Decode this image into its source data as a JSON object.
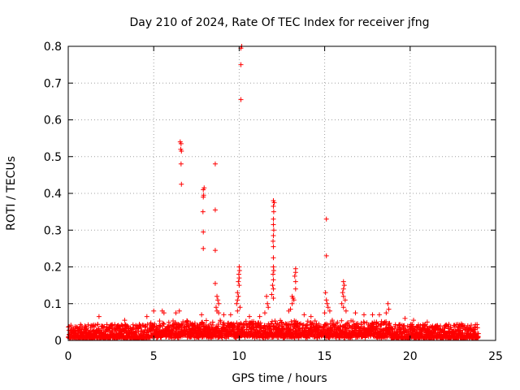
{
  "chart_data": {
    "type": "scatter",
    "title": "Day 210 of 2024, Rate Of TEC Index for receiver jfng",
    "xlabel": "GPS time / hours",
    "ylabel": "ROTI / TECUs",
    "xlim": [
      0,
      25
    ],
    "ylim": [
      0,
      0.8
    ],
    "x_ticks": [
      "0",
      "5",
      "10",
      "15",
      "20",
      "25"
    ],
    "y_ticks": [
      "0",
      "0.1",
      "0.2",
      "0.3",
      "0.4",
      "0.5",
      "0.6",
      "0.7",
      "0.8"
    ],
    "grid": true,
    "marker": "+",
    "color": "#ff0000",
    "baseline": {
      "x_range": [
        0,
        24
      ],
      "description_values": "dense cluster of ROTI values between 0.005 and about 0.05 TECU/min"
    },
    "points": [
      [
        6.55,
        0.54
      ],
      [
        6.6,
        0.535
      ],
      [
        6.58,
        0.52
      ],
      [
        6.62,
        0.515
      ],
      [
        6.6,
        0.48
      ],
      [
        6.62,
        0.425
      ],
      [
        7.9,
        0.41
      ],
      [
        7.95,
        0.415
      ],
      [
        7.92,
        0.395
      ],
      [
        7.9,
        0.39
      ],
      [
        7.88,
        0.35
      ],
      [
        7.9,
        0.295
      ],
      [
        7.9,
        0.25
      ],
      [
        8.6,
        0.48
      ],
      [
        8.6,
        0.355
      ],
      [
        8.6,
        0.245
      ],
      [
        8.6,
        0.155
      ],
      [
        8.7,
        0.12
      ],
      [
        8.75,
        0.11
      ],
      [
        8.8,
        0.1
      ],
      [
        8.65,
        0.09
      ],
      [
        8.7,
        0.08
      ],
      [
        8.8,
        0.075
      ],
      [
        10.1,
        0.795
      ],
      [
        10.15,
        0.8
      ],
      [
        10.1,
        0.75
      ],
      [
        10.1,
        0.655
      ],
      [
        10.0,
        0.2
      ],
      [
        10.02,
        0.19
      ],
      [
        9.98,
        0.18
      ],
      [
        10.0,
        0.17
      ],
      [
        9.95,
        0.16
      ],
      [
        10.0,
        0.15
      ],
      [
        9.9,
        0.13
      ],
      [
        9.95,
        0.12
      ],
      [
        9.9,
        0.11
      ],
      [
        9.85,
        0.1
      ],
      [
        10.05,
        0.09
      ],
      [
        9.9,
        0.08
      ],
      [
        12.0,
        0.38
      ],
      [
        12.05,
        0.375
      ],
      [
        12.0,
        0.365
      ],
      [
        12.02,
        0.35
      ],
      [
        12.0,
        0.33
      ],
      [
        12.0,
        0.315
      ],
      [
        12.02,
        0.3
      ],
      [
        12.0,
        0.285
      ],
      [
        11.98,
        0.27
      ],
      [
        12.0,
        0.255
      ],
      [
        12.0,
        0.225
      ],
      [
        12.0,
        0.2
      ],
      [
        12.02,
        0.19
      ],
      [
        11.98,
        0.18
      ],
      [
        12.0,
        0.165
      ],
      [
        11.95,
        0.15
      ],
      [
        12.0,
        0.14
      ],
      [
        11.9,
        0.125
      ],
      [
        12.0,
        0.115
      ],
      [
        11.6,
        0.12
      ],
      [
        11.65,
        0.1
      ],
      [
        11.7,
        0.09
      ],
      [
        11.5,
        0.075
      ],
      [
        13.3,
        0.195
      ],
      [
        13.3,
        0.185
      ],
      [
        13.25,
        0.175
      ],
      [
        13.3,
        0.16
      ],
      [
        13.3,
        0.14
      ],
      [
        13.1,
        0.12
      ],
      [
        13.15,
        0.115
      ],
      [
        13.2,
        0.11
      ],
      [
        13.1,
        0.1
      ],
      [
        13.0,
        0.085
      ],
      [
        12.9,
        0.08
      ],
      [
        15.1,
        0.33
      ],
      [
        15.1,
        0.23
      ],
      [
        15.05,
        0.13
      ],
      [
        15.1,
        0.11
      ],
      [
        15.15,
        0.1
      ],
      [
        15.2,
        0.09
      ],
      [
        15.3,
        0.08
      ],
      [
        15.0,
        0.075
      ],
      [
        16.1,
        0.16
      ],
      [
        16.15,
        0.15
      ],
      [
        16.1,
        0.14
      ],
      [
        16.05,
        0.13
      ],
      [
        16.1,
        0.12
      ],
      [
        16.2,
        0.11
      ],
      [
        16.0,
        0.1
      ],
      [
        16.1,
        0.09
      ],
      [
        16.25,
        0.08
      ],
      [
        18.7,
        0.1
      ],
      [
        18.75,
        0.085
      ],
      [
        18.6,
        0.075
      ],
      [
        18.2,
        0.07
      ],
      [
        5.0,
        0.08
      ],
      [
        5.5,
        0.08
      ],
      [
        5.6,
        0.075
      ],
      [
        6.3,
        0.075
      ],
      [
        6.5,
        0.08
      ],
      [
        1.8,
        0.065
      ],
      [
        3.3,
        0.055
      ],
      [
        4.6,
        0.065
      ],
      [
        7.8,
        0.07
      ],
      [
        9.1,
        0.07
      ],
      [
        9.5,
        0.07
      ],
      [
        10.6,
        0.065
      ],
      [
        11.2,
        0.065
      ],
      [
        13.8,
        0.07
      ],
      [
        14.2,
        0.065
      ],
      [
        16.8,
        0.075
      ],
      [
        17.3,
        0.07
      ],
      [
        17.8,
        0.07
      ],
      [
        19.7,
        0.06
      ],
      [
        20.2,
        0.055
      ],
      [
        21.0,
        0.05
      ],
      [
        23.0,
        0.045
      ]
    ]
  }
}
